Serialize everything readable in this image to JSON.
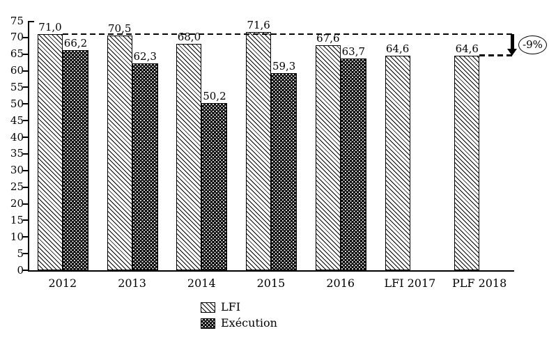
{
  "chart_data": {
    "type": "bar",
    "categories": [
      "2012",
      "2013",
      "2014",
      "2015",
      "2016",
      "LFI 2017",
      "PLF 2018"
    ],
    "series": [
      {
        "name": "LFI",
        "pattern": "diagonal-hatch",
        "values": [
          71.0,
          70.5,
          68.0,
          71.6,
          67.6,
          64.6,
          64.6
        ],
        "labels": [
          "71,0",
          "70,5",
          "68,0",
          "71,6",
          "67,6",
          "64,6",
          "64,6"
        ]
      },
      {
        "name": "Exécution",
        "pattern": "black-dot-grid",
        "values": [
          66.2,
          62.3,
          50.2,
          59.3,
          63.7,
          null,
          null
        ],
        "labels": [
          "66,2",
          "62,3",
          "50,2",
          "59,3",
          "63,7",
          null,
          null
        ]
      }
    ],
    "ylim": [
      0,
      75
    ],
    "ytick_step": 5,
    "yticks": [
      0,
      5,
      10,
      15,
      20,
      25,
      30,
      35,
      40,
      45,
      50,
      55,
      60,
      65,
      70,
      75
    ],
    "grid": false,
    "legend_position": "bottom-center",
    "annotation": {
      "label": "-9%",
      "upper_ref_value": 71.0,
      "lower_ref_value": 64.6
    }
  },
  "colors": {
    "foreground": "#000000",
    "background": "#ffffff"
  }
}
